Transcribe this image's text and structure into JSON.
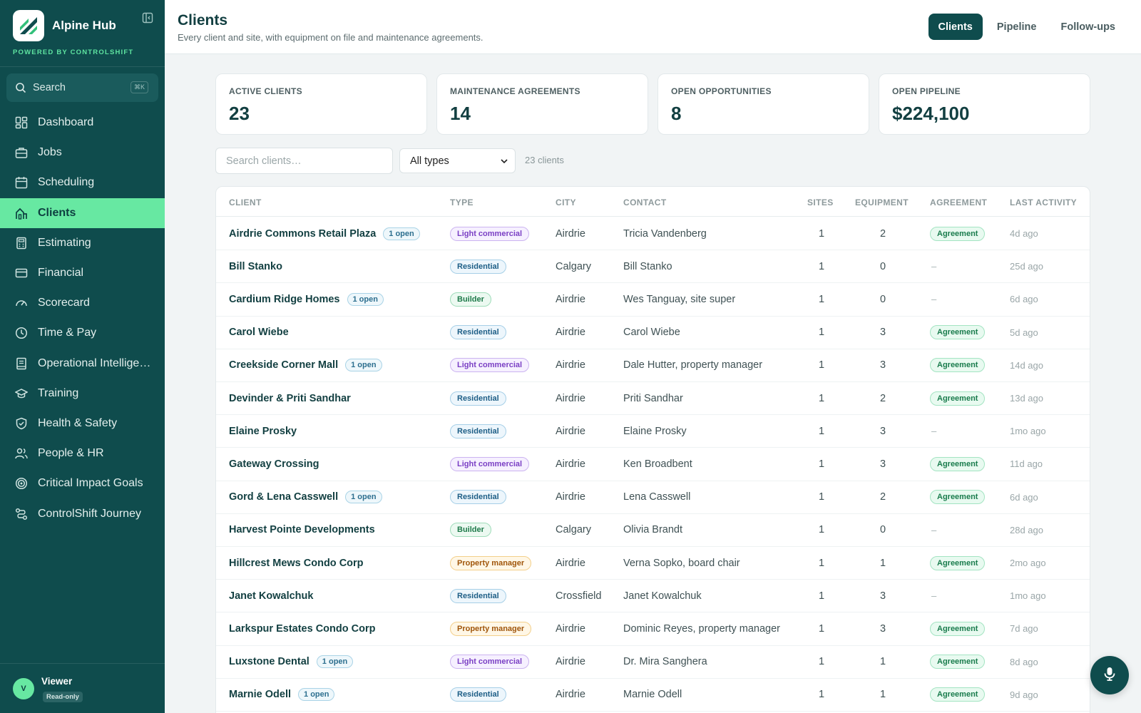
{
  "brand": {
    "name": "Alpine Hub",
    "subtitle": "POWERED BY CONTROLSHIFT"
  },
  "search": {
    "label": "Search",
    "shortcut": "⌘K"
  },
  "nav": [
    {
      "label": "Dashboard",
      "icon": "dashboard-icon",
      "active": false
    },
    {
      "label": "Jobs",
      "icon": "briefcase-icon",
      "active": false
    },
    {
      "label": "Scheduling",
      "icon": "calendar-icon",
      "active": false
    },
    {
      "label": "Clients",
      "icon": "clients-icon",
      "active": true
    },
    {
      "label": "Estimating",
      "icon": "calculator-icon",
      "active": false
    },
    {
      "label": "Financial",
      "icon": "credit-card-icon",
      "active": false
    },
    {
      "label": "Scorecard",
      "icon": "gauge-icon",
      "active": false
    },
    {
      "label": "Time & Pay",
      "icon": "clock-icon",
      "active": false
    },
    {
      "label": "Operational Intellige…",
      "icon": "book-icon",
      "active": false
    },
    {
      "label": "Training",
      "icon": "graduation-cap-icon",
      "active": false
    },
    {
      "label": "Health & Safety",
      "icon": "shield-check-icon",
      "active": false
    },
    {
      "label": "People & HR",
      "icon": "people-icon",
      "active": false
    },
    {
      "label": "Critical Impact Goals",
      "icon": "target-icon",
      "active": false
    },
    {
      "label": "ControlShift Journey",
      "icon": "route-icon",
      "active": false
    }
  ],
  "user": {
    "initial": "V",
    "name": "Viewer",
    "role": "Read-only"
  },
  "header": {
    "title": "Clients",
    "subtitle": "Every client and site, with equipment on file and maintenance agreements.",
    "tabs": [
      {
        "label": "Clients",
        "active": true
      },
      {
        "label": "Pipeline",
        "active": false
      },
      {
        "label": "Follow-ups",
        "active": false
      }
    ]
  },
  "stats": [
    {
      "label": "ACTIVE CLIENTS",
      "value": "23"
    },
    {
      "label": "MAINTENANCE AGREEMENTS",
      "value": "14"
    },
    {
      "label": "OPEN OPPORTUNITIES",
      "value": "8"
    },
    {
      "label": "OPEN PIPELINE",
      "value": "$224,100"
    }
  ],
  "filters": {
    "search_placeholder": "Search clients…",
    "type_value": "All types",
    "count_text": "23 clients"
  },
  "table": {
    "columns": [
      "CLIENT",
      "TYPE",
      "CITY",
      "CONTACT",
      "SITES",
      "EQUIPMENT",
      "AGREEMENT",
      "LAST ACTIVITY"
    ],
    "rows": [
      {
        "client": "Airdrie Commons Retail Plaza",
        "open": "1 open",
        "type": "Light commercial",
        "type_key": "light",
        "city": "Airdrie",
        "contact": "Tricia Vandenberg",
        "sites": "1",
        "equipment": "2",
        "agreement": "Agreement",
        "last": "4d ago"
      },
      {
        "client": "Bill Stanko",
        "open": "",
        "type": "Residential",
        "type_key": "res",
        "city": "Calgary",
        "contact": "Bill Stanko",
        "sites": "1",
        "equipment": "0",
        "agreement": "–",
        "last": "25d ago"
      },
      {
        "client": "Cardium Ridge Homes",
        "open": "1 open",
        "type": "Builder",
        "type_key": "builder",
        "city": "Airdrie",
        "contact": "Wes Tanguay, site super",
        "sites": "1",
        "equipment": "0",
        "agreement": "–",
        "last": "6d ago"
      },
      {
        "client": "Carol Wiebe",
        "open": "",
        "type": "Residential",
        "type_key": "res",
        "city": "Airdrie",
        "contact": "Carol Wiebe",
        "sites": "1",
        "equipment": "3",
        "agreement": "Agreement",
        "last": "5d ago"
      },
      {
        "client": "Creekside Corner Mall",
        "open": "1 open",
        "type": "Light commercial",
        "type_key": "light",
        "city": "Airdrie",
        "contact": "Dale Hutter, property manager",
        "sites": "1",
        "equipment": "3",
        "agreement": "Agreement",
        "last": "14d ago"
      },
      {
        "client": "Devinder & Priti Sandhar",
        "open": "",
        "type": "Residential",
        "type_key": "res",
        "city": "Airdrie",
        "contact": "Priti Sandhar",
        "sites": "1",
        "equipment": "2",
        "agreement": "Agreement",
        "last": "13d ago"
      },
      {
        "client": "Elaine Prosky",
        "open": "",
        "type": "Residential",
        "type_key": "res",
        "city": "Airdrie",
        "contact": "Elaine Prosky",
        "sites": "1",
        "equipment": "3",
        "agreement": "–",
        "last": "1mo ago"
      },
      {
        "client": "Gateway Crossing",
        "open": "",
        "type": "Light commercial",
        "type_key": "light",
        "city": "Airdrie",
        "contact": "Ken Broadbent",
        "sites": "1",
        "equipment": "3",
        "agreement": "Agreement",
        "last": "11d ago"
      },
      {
        "client": "Gord & Lena Casswell",
        "open": "1 open",
        "type": "Residential",
        "type_key": "res",
        "city": "Airdrie",
        "contact": "Lena Casswell",
        "sites": "1",
        "equipment": "2",
        "agreement": "Agreement",
        "last": "6d ago"
      },
      {
        "client": "Harvest Pointe Developments",
        "open": "",
        "type": "Builder",
        "type_key": "builder",
        "city": "Calgary",
        "contact": "Olivia Brandt",
        "sites": "1",
        "equipment": "0",
        "agreement": "–",
        "last": "28d ago"
      },
      {
        "client": "Hillcrest Mews Condo Corp",
        "open": "",
        "type": "Property manager",
        "type_key": "pm",
        "city": "Airdrie",
        "contact": "Verna Sopko, board chair",
        "sites": "1",
        "equipment": "1",
        "agreement": "Agreement",
        "last": "2mo ago"
      },
      {
        "client": "Janet Kowalchuk",
        "open": "",
        "type": "Residential",
        "type_key": "res",
        "city": "Crossfield",
        "contact": "Janet Kowalchuk",
        "sites": "1",
        "equipment": "3",
        "agreement": "–",
        "last": "1mo ago"
      },
      {
        "client": "Larkspur Estates Condo Corp",
        "open": "",
        "type": "Property manager",
        "type_key": "pm",
        "city": "Airdrie",
        "contact": "Dominic Reyes, property manager",
        "sites": "1",
        "equipment": "3",
        "agreement": "Agreement",
        "last": "7d ago"
      },
      {
        "client": "Luxstone Dental",
        "open": "1 open",
        "type": "Light commercial",
        "type_key": "light",
        "city": "Airdrie",
        "contact": "Dr. Mira Sanghera",
        "sites": "1",
        "equipment": "1",
        "agreement": "Agreement",
        "last": "8d ago"
      },
      {
        "client": "Marnie Odell",
        "open": "1 open",
        "type": "Residential",
        "type_key": "res",
        "city": "Airdrie",
        "contact": "Marnie Odell",
        "sites": "1",
        "equipment": "1",
        "agreement": "Agreement",
        "last": "9d ago"
      }
    ]
  },
  "fab": {
    "icon": "microphone-icon"
  }
}
